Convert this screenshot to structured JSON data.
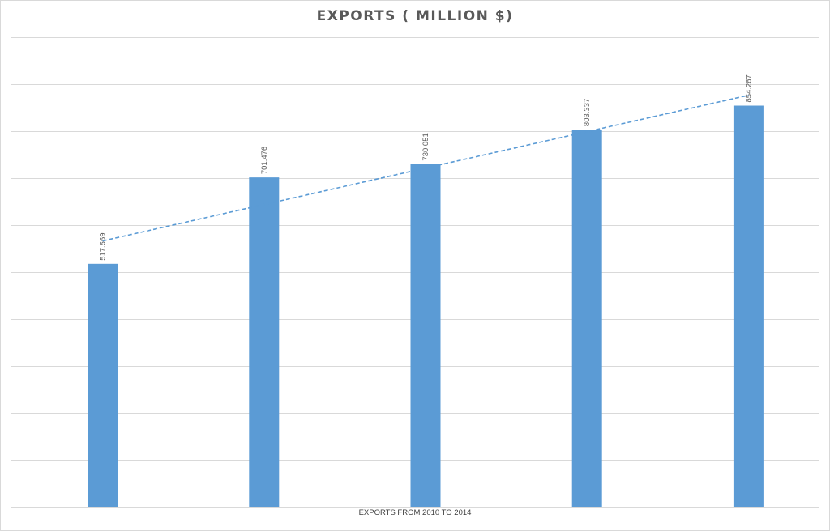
{
  "chart_data": {
    "type": "bar",
    "title": "EXPORTS ( MILLION $)",
    "xlabel": "EXPORTS FROM 2010 TO 2014",
    "ylabel": "",
    "ylim": [
      0,
      1000
    ],
    "y_grid_step": 100,
    "grid": true,
    "values": [
      517.569,
      701.476,
      730.051,
      803.337,
      854.287
    ],
    "data_labels": [
      "517.569",
      "701.476",
      "730.051",
      "803.337",
      "854.287"
    ],
    "trendline": {
      "type": "linear",
      "style": "dashed"
    },
    "colors": {
      "bar": "#5b9bd5",
      "trendline": "#5b9bd5",
      "grid": "#d9d9d9",
      "label": "#595959"
    }
  }
}
